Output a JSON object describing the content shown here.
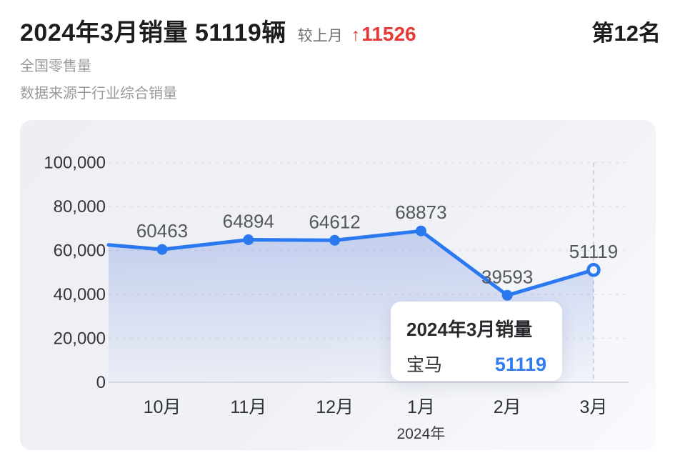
{
  "header": {
    "title": "2024年3月销量 51119辆",
    "mom_label": "较上月",
    "mom_arrow": "↑",
    "mom_value": "11526",
    "rank_badge": "第12名",
    "scope_note": "全国零售量",
    "source_note": "数据来源于行业综合销量"
  },
  "tooltip": {
    "title": "2024年3月销量",
    "series_name": "宝马",
    "value": "51119"
  },
  "chart_data": {
    "type": "line",
    "categories": [
      "10月",
      "11月",
      "12月",
      "1月",
      "2月",
      "3月"
    ],
    "series": [
      {
        "name": "宝马",
        "values": [
          60463,
          64894,
          64612,
          68873,
          39593,
          51119
        ]
      }
    ],
    "point_labels": [
      "60463",
      "64894",
      "64612",
      "68873",
      "39593",
      "51119"
    ],
    "edge_lead_in_value": 62500,
    "xlabel": "2024年",
    "ylabel": "",
    "ylim": [
      0,
      100000
    ],
    "y_ticks": [
      0,
      20000,
      40000,
      60000,
      80000,
      100000
    ],
    "y_tick_labels": [
      "0",
      "20,000",
      "40,000",
      "60,000",
      "80,000",
      "100,000"
    ],
    "grid": "horizontal-dashed",
    "legend": "none",
    "highlighted_index": 5,
    "highlight_style": "open-circle-with-dashed-crosshair",
    "line_color": "#2b79f0",
    "area_fill": "blue-gradient-fade"
  },
  "colors": {
    "accent_blue": "#2b79f0",
    "delta_red": "#e53a36",
    "panel_bg": "#eef0f4",
    "tooltip_value_blue": "#2e7cf0"
  }
}
